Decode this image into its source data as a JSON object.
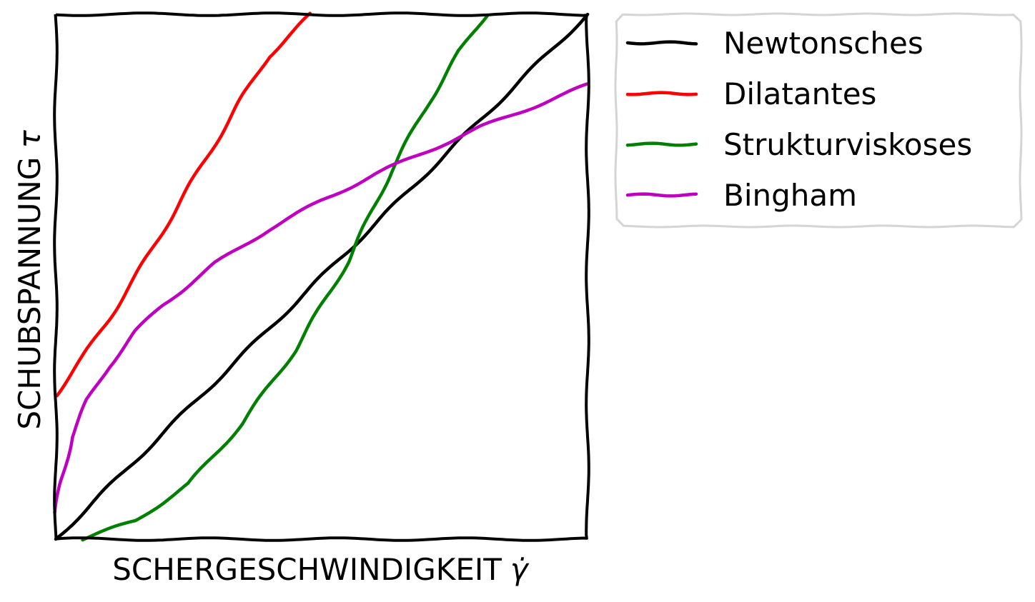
{
  "chart_data": {
    "type": "line",
    "style": "xkcd",
    "xlabel": "SCHERGESCHWINDIGKEIT",
    "xlabel_symbol": "γ̇",
    "ylabel": "SCHUBSPANNUNG",
    "ylabel_symbol": "τ",
    "xlim": [
      0,
      10
    ],
    "ylim": [
      0,
      10
    ],
    "ticks": "none",
    "grid": false,
    "legend_position": "outside-top-right",
    "series": [
      {
        "name": "Newtonsches",
        "color": "#000000",
        "x": [
          0,
          1,
          2,
          3,
          4,
          5,
          6,
          7,
          8,
          9,
          10
        ],
        "y": [
          0,
          1,
          2,
          3,
          4,
          5,
          6,
          7,
          8,
          9,
          10
        ]
      },
      {
        "name": "Dilatantes",
        "color": "#ff0000",
        "x": [
          0,
          0.5,
          1,
          1.5,
          2,
          2.5,
          3,
          3.5,
          4,
          4.5,
          4.8
        ],
        "y": [
          2.75,
          3.45,
          4.2,
          5.0,
          5.85,
          6.7,
          7.55,
          8.4,
          9.2,
          9.7,
          10
        ]
      },
      {
        "name": "Strukturviskoses",
        "color": "#008000",
        "x": [
          0.5,
          1.5,
          2.5,
          3.5,
          4.5,
          5.5,
          6.3,
          7.0,
          7.6,
          8.1
        ],
        "y": [
          0,
          0.35,
          1.05,
          2.2,
          3.6,
          5.3,
          7.0,
          8.3,
          9.3,
          10
        ]
      },
      {
        "name": "Bingham",
        "color": "#bf00bf",
        "x": [
          0,
          0.1,
          0.3,
          0.6,
          1,
          1.5,
          2,
          3,
          4,
          5,
          6,
          7,
          8,
          9,
          10
        ],
        "y": [
          0.5,
          1.1,
          1.95,
          2.65,
          3.3,
          3.95,
          4.45,
          5.25,
          5.9,
          6.45,
          6.95,
          7.4,
          7.85,
          8.25,
          8.65
        ]
      }
    ]
  }
}
